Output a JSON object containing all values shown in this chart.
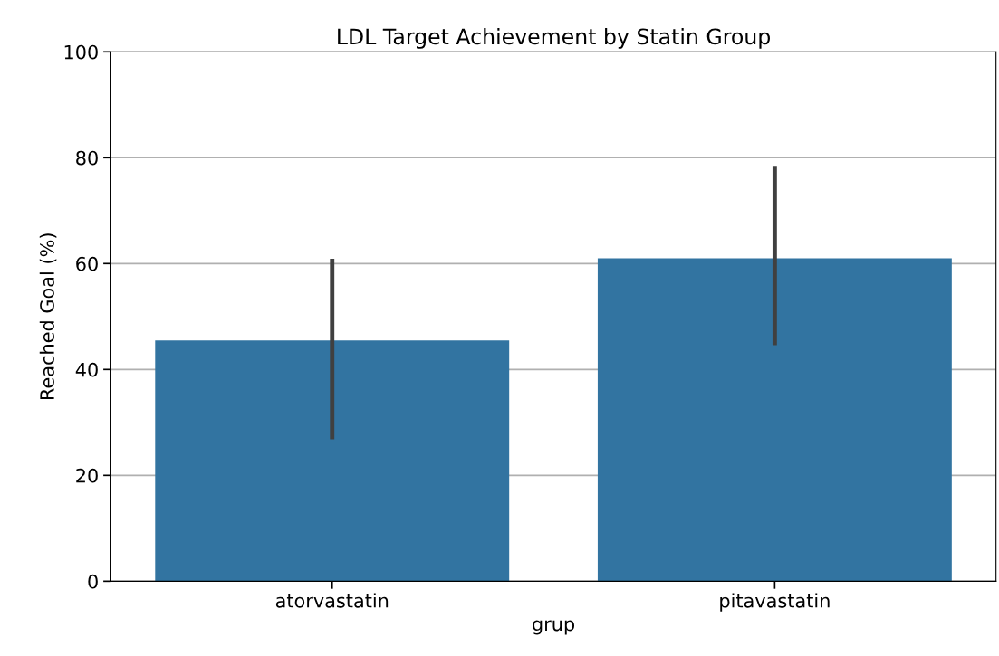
{
  "chart_data": {
    "type": "bar",
    "title": "LDL Target Achievement by Statin Group",
    "xlabel": "grup",
    "ylabel": "Reached Goal (%)",
    "categories": [
      "atorvastatin",
      "pitavastatin"
    ],
    "values": [
      45.5,
      61.0
    ],
    "errors": [
      [
        26.8,
        60.9
      ],
      [
        44.6,
        78.3
      ]
    ],
    "color": "#3274a1",
    "ylim": [
      0,
      100
    ],
    "yticks": [
      0,
      20,
      40,
      60,
      80,
      100
    ],
    "grid": "y"
  }
}
